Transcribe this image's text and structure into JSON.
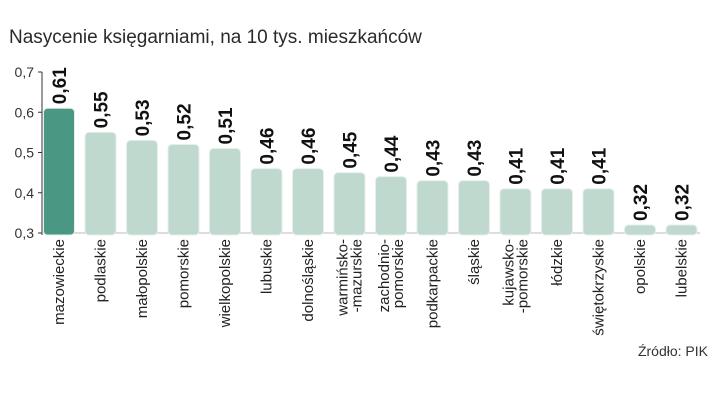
{
  "chart_data": {
    "type": "bar",
    "title": "Nasycenie księgarniami, na 10 tys. mieszkańców",
    "source": "Źródło: PIK",
    "ylim": [
      0.3,
      0.7
    ],
    "yticks": [
      "0,3",
      "0,4",
      "0,5",
      "0,6",
      "0,7"
    ],
    "ytick_values": [
      0.3,
      0.4,
      0.5,
      0.6,
      0.7
    ],
    "grid": false,
    "colors": {
      "highlight": "#4a9783",
      "bar": "#bfd9cf",
      "outline": "#ffffff",
      "axis": "#333333"
    },
    "categories": [
      "mazowieckie",
      "podlaskie",
      "małopolskie",
      "pomorskie",
      "wielkopolskie",
      "lubuskie",
      "dolnośląskie",
      "warmińsko-\n-mazurskie",
      "zachodnio-\npomorskie",
      "podkarpackie",
      "śląskie",
      "kujawsko-\n-pomorskie",
      "łódzkie",
      "świętokrzyskie",
      "opolskie",
      "lubelskie"
    ],
    "values": [
      0.61,
      0.55,
      0.53,
      0.52,
      0.51,
      0.46,
      0.46,
      0.45,
      0.44,
      0.43,
      0.43,
      0.41,
      0.41,
      0.41,
      0.32,
      0.32
    ],
    "value_labels": [
      "0,61",
      "0,55",
      "0,53",
      "0,52",
      "0,51",
      "0,46",
      "0,46",
      "0,45",
      "0,44",
      "0,43",
      "0,43",
      "0,41",
      "0,41",
      "0,41",
      "0,32",
      "0,32"
    ]
  }
}
